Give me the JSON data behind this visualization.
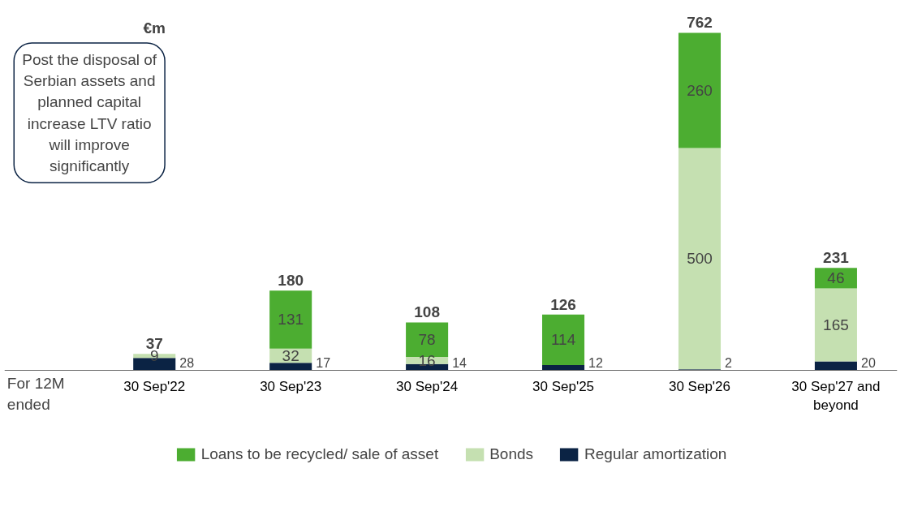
{
  "chart_data": {
    "type": "bar",
    "stacked": true,
    "title": "€m",
    "xlabel": "For 12M ended",
    "categories": [
      "30 Sep'22",
      "30 Sep'23",
      "30 Sep'24",
      "30 Sep'25",
      "30 Sep'26",
      "30 Sep'27 and beyond"
    ],
    "series": [
      {
        "name": "Regular amortization",
        "color": "#0b2344",
        "values": [
          28,
          17,
          14,
          12,
          2,
          20
        ],
        "value_labels": [
          "28",
          "17",
          "14",
          "12",
          "2",
          "20"
        ]
      },
      {
        "name": "Bonds",
        "color": "#c5e0b1",
        "values": [
          9,
          32,
          16,
          null,
          500,
          165
        ],
        "value_labels": [
          "9",
          "32",
          "16",
          null,
          "500",
          "165"
        ]
      },
      {
        "name": "Loans to be recycled/ sale of asset",
        "color": "#4cad31",
        "values": [
          null,
          131,
          78,
          114,
          260,
          46
        ],
        "value_labels": [
          null,
          "131",
          "78",
          "114",
          "260",
          "46"
        ]
      }
    ],
    "totals": [
      "37",
      "180",
      "108",
      "126",
      "762",
      "231"
    ],
    "annotations": [
      "Post the disposal of Serbian assets and planned capital increase LTV ratio will improve significantly"
    ],
    "legend": "bottom",
    "grid": false
  }
}
